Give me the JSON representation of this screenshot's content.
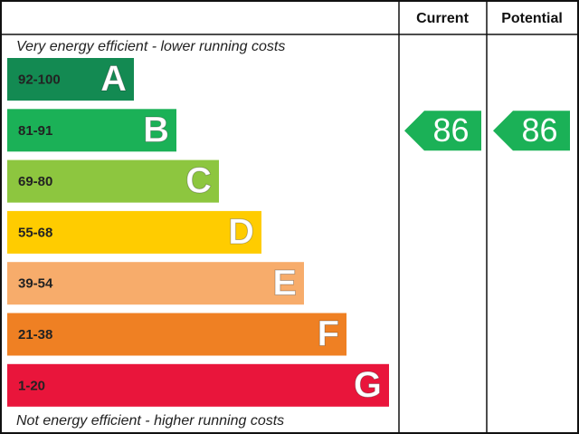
{
  "header": {
    "current": "Current",
    "potential": "Potential"
  },
  "top_note": "Very energy efficient - lower running costs",
  "bottom_note": "Not energy efficient - higher running costs",
  "bands": [
    {
      "range": "92-100",
      "letter": "A",
      "color": "#138a52"
    },
    {
      "range": "81-91",
      "letter": "B",
      "color": "#1bb157"
    },
    {
      "range": "69-80",
      "letter": "C",
      "color": "#8dc63f"
    },
    {
      "range": "55-68",
      "letter": "D",
      "color": "#ffcc00"
    },
    {
      "range": "39-54",
      "letter": "E",
      "color": "#f7ac6b"
    },
    {
      "range": "21-38",
      "letter": "F",
      "color": "#ef8023"
    },
    {
      "range": "1-20",
      "letter": "G",
      "color": "#e9153b"
    }
  ],
  "current": {
    "value": "86",
    "color": "#1bb157"
  },
  "potential": {
    "value": "86",
    "color": "#1bb157"
  }
}
